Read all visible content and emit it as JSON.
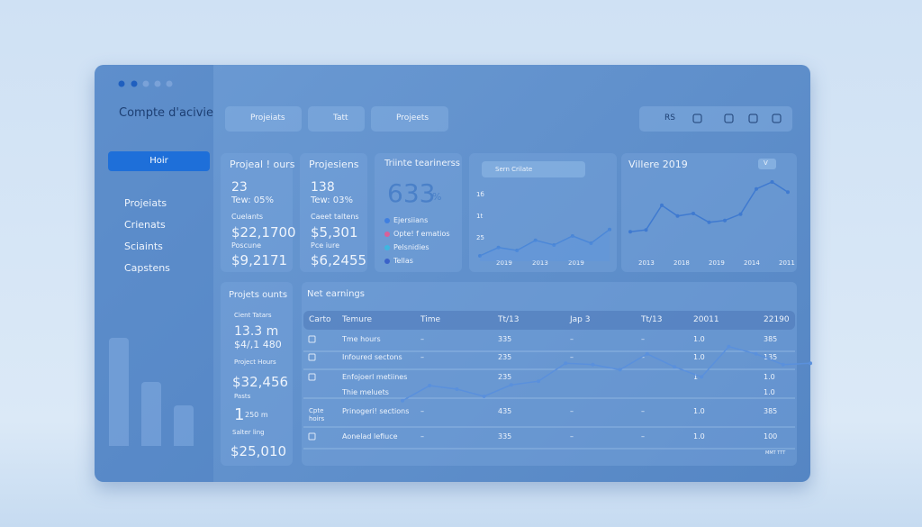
{
  "sidebar": {
    "title": "Compte d'acivie",
    "active": "Hoir",
    "items": [
      "Projeiats",
      "Crienats",
      "Sciaints",
      "Capstens"
    ]
  },
  "toolbar": {
    "buttons": [
      "Projeiats",
      "Tatt",
      "Projeets"
    ],
    "right": "RS"
  },
  "cards": [
    {
      "title": "Projeal ! ours",
      "lines": [
        "23",
        "Tew: 05%",
        "Cuelants",
        "$22,1700",
        "Poscune",
        "$9,2171"
      ]
    },
    {
      "title": "Projesiens",
      "lines": [
        "138",
        "Tew: 03%",
        "Caeet taltens",
        "$5,301",
        "Pce iure",
        "$6,2455"
      ]
    }
  ],
  "trend": {
    "title": "Triinte tearinerss",
    "big": "633",
    "suffix": "%",
    "legend": [
      {
        "name": "Ejersiians",
        "color": "#3f7fe0"
      },
      {
        "name": "Opte! f ematios",
        "color": "#d8609a"
      },
      {
        "name": "Pelsnidies",
        "color": "#3fb6e0"
      },
      {
        "name": "Tellas",
        "color": "#3a62c9"
      }
    ]
  },
  "search_chart": {
    "type": "line",
    "placeholder": "Sern Crilate",
    "y_labels": [
      "1б",
      "1t",
      "25"
    ],
    "x_labels": [
      "2019",
      "2013",
      "2019"
    ],
    "values": [
      15,
      38,
      30,
      58,
      45,
      70,
      50,
      88
    ],
    "ylim": [
      0,
      100
    ]
  },
  "villere_chart": {
    "type": "line",
    "title": "Villere 2019",
    "dropdown": "V",
    "x_labels": [
      "2013",
      "2018",
      "2019",
      "2014",
      "2011"
    ],
    "values": [
      11,
      14,
      53,
      36,
      40,
      26,
      29,
      39,
      79,
      90,
      74
    ],
    "ylim": [
      0,
      100
    ]
  },
  "counts": {
    "title": "Projets ounts",
    "lines": [
      "Cient Tatars",
      "13.3 m",
      "$4/,1 480",
      "Project Hours",
      "$32,456",
      "Pasts",
      "1",
      "250 m",
      "Salter ling",
      "$25,010"
    ]
  },
  "table": {
    "title": "Net earnings",
    "header": [
      "Carto",
      "Temure",
      "Time",
      "Tt/13",
      "Jap 3",
      "Tt/13",
      "20011",
      "22190"
    ],
    "rows": [
      [
        null,
        "Tme hours",
        "–",
        "335",
        "–",
        "–",
        "1.0",
        "385"
      ],
      [
        null,
        "Infoured sectons",
        "–",
        "235",
        "–",
        "–",
        "1.0",
        "135"
      ],
      [
        null,
        "Enfojoerl metiines",
        null,
        "235",
        null,
        null,
        "1",
        "1.0"
      ],
      [
        null,
        "Thie meluets",
        null,
        null,
        null,
        null,
        null,
        "1.0"
      ],
      [
        "Cpte hoirs",
        "Prinogeri! sections",
        "–",
        "435",
        "–",
        "–",
        "1.0",
        "385"
      ],
      [
        null,
        "Aonelad lefiuce",
        "–",
        "335",
        "–",
        "–",
        "1.0",
        "100"
      ]
    ],
    "footer": "MMT TTT",
    "line": {
      "type": "line",
      "values": [
        19,
        40,
        35,
        25,
        41,
        46,
        71,
        69,
        62,
        84,
        66,
        52,
        94,
        84,
        69,
        71
      ],
      "ylim": [
        0,
        100
      ]
    }
  }
}
